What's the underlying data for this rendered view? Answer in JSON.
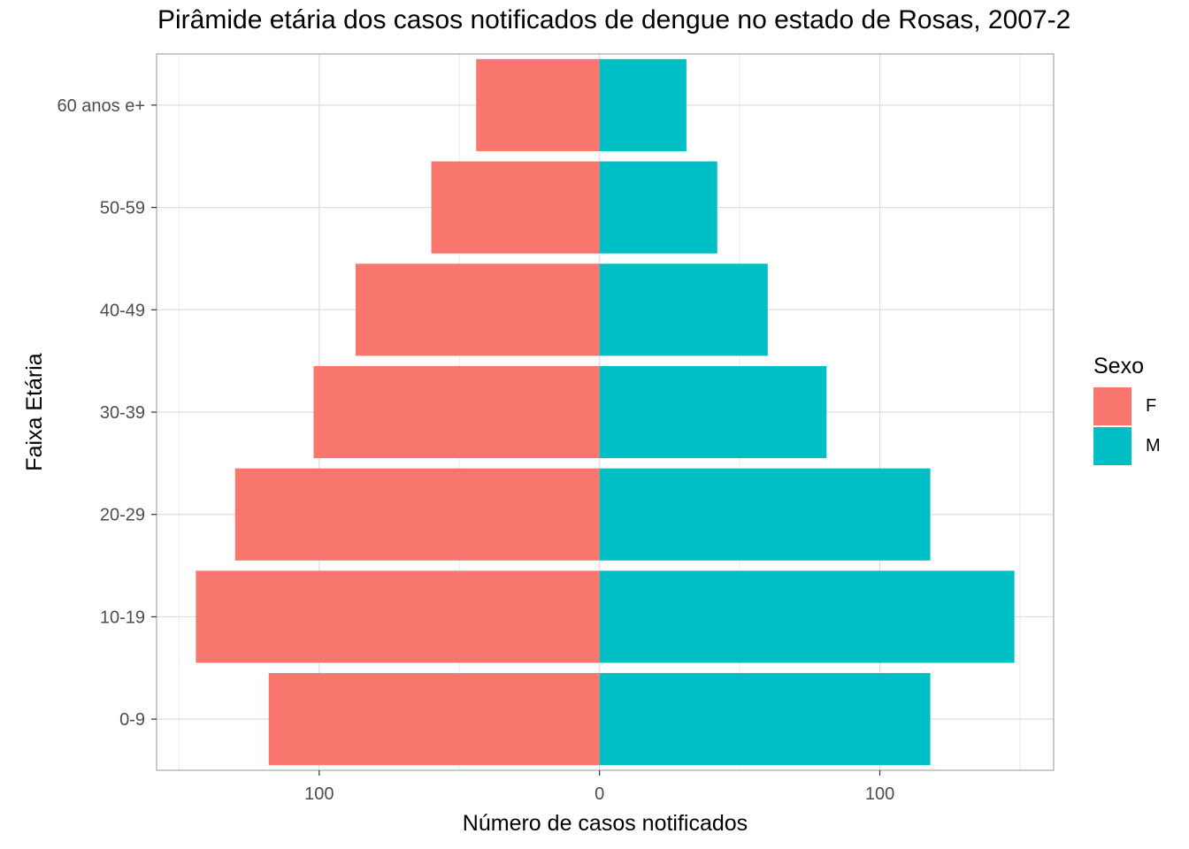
{
  "chart_data": {
    "type": "bar",
    "orientation": "horizontal",
    "title": "Pirâmide etária dos casos notificados de dengue no estado de Rosas, 2007-2",
    "xlabel": "Número de casos notificados",
    "ylabel": "Faixa Etária",
    "categories": [
      "0-9",
      "10-19",
      "20-29",
      "30-39",
      "40-49",
      "50-59",
      "60 anos e+"
    ],
    "series": [
      {
        "name": "F",
        "color": "#F8766D",
        "values": [
          118,
          144,
          130,
          102,
          87,
          60,
          44
        ]
      },
      {
        "name": "M",
        "color": "#00BFC4",
        "values": [
          118,
          148,
          118,
          81,
          60,
          42,
          31
        ]
      }
    ],
    "xlim": [
      -158,
      162
    ],
    "xticks": [
      {
        "value": -100,
        "label": "100"
      },
      {
        "value": 0,
        "label": "0"
      },
      {
        "value": 100,
        "label": "100"
      }
    ],
    "grid": true,
    "legend": {
      "title": "Sexo",
      "placement": "right"
    }
  }
}
